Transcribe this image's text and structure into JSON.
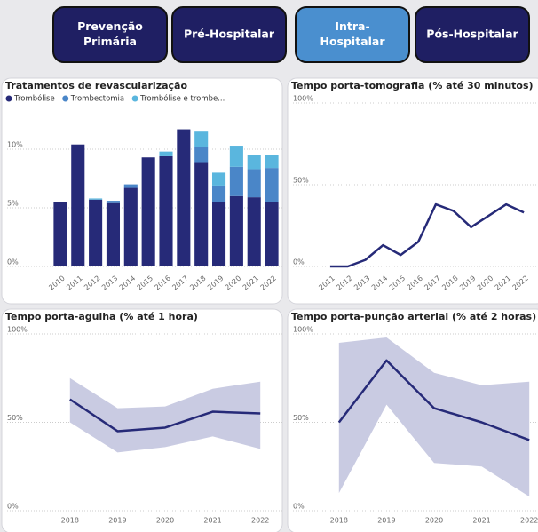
{
  "nav": [
    {
      "lines": [
        "Prevenção",
        "Primária"
      ],
      "active": false
    },
    {
      "lines": [
        "Pré-Hospitalar"
      ],
      "active": false
    },
    {
      "lines": [
        "Intra-",
        "Hospitalar"
      ],
      "active": true
    },
    {
      "lines": [
        "Pós-Hospitalar"
      ],
      "active": false
    }
  ],
  "chart_data": [
    {
      "type": "bar",
      "stacked": true,
      "title": "Tratamentos de revascularização",
      "categories": [
        "2010",
        "2011",
        "2012",
        "2013",
        "2014",
        "2015",
        "2016",
        "2017",
        "2018",
        "2019",
        "2020",
        "2021",
        "2022"
      ],
      "series": [
        {
          "name": "Trombólise",
          "color": "#262a78",
          "values": [
            5.5,
            10.4,
            5.7,
            5.4,
            6.7,
            9.3,
            9.4,
            11.7,
            8.9,
            5.5,
            6.0,
            5.9,
            5.5
          ]
        },
        {
          "name": "Trombectomia",
          "color": "#4a86c8",
          "values": [
            0,
            0,
            0,
            0.2,
            0.3,
            0,
            0,
            0,
            1.3,
            1.4,
            2.5,
            2.4,
            2.9
          ]
        },
        {
          "name": "Trombólise e trombe...",
          "color": "#5ab6de",
          "values": [
            0,
            0,
            0.1,
            0,
            0,
            0,
            0.4,
            0,
            1.3,
            1.1,
            1.8,
            1.2,
            1.1
          ]
        }
      ],
      "ylim": [
        0,
        12.5
      ],
      "yticks": [
        {
          "value": 0,
          "label": "0%"
        },
        {
          "value": 5,
          "label": "5%"
        },
        {
          "value": 10,
          "label": "10%"
        }
      ],
      "grid": true,
      "legend": "top"
    },
    {
      "type": "line",
      "title": "Tempo porta-tomografia (% até 30 minutos)",
      "categories": [
        "2011",
        "2012",
        "2013",
        "2014",
        "2015",
        "2016",
        "2017",
        "2018",
        "2019",
        "2020",
        "2021",
        "2022"
      ],
      "series": [
        {
          "name": null,
          "color": "#262a78",
          "values": [
            0,
            0,
            4,
            13,
            7,
            15,
            38,
            34,
            24,
            31,
            38,
            33
          ]
        }
      ],
      "ylim": [
        0,
        100
      ],
      "yticks": [
        {
          "value": 0,
          "label": "0%"
        },
        {
          "value": 50,
          "label": "50%"
        },
        {
          "value": 100,
          "label": "100%"
        }
      ],
      "grid": true,
      "rotate_labels": true
    },
    {
      "type": "line",
      "title": "Tempo porta-agulha (% até 1 hora)",
      "categories": [
        "2018",
        "2019",
        "2020",
        "2021",
        "2022"
      ],
      "series": [
        {
          "name": null,
          "color": "#262a78",
          "values": [
            63,
            45,
            47,
            56,
            55
          ],
          "band_upper": [
            75,
            58,
            59,
            69,
            73
          ],
          "band_lower": [
            50,
            33,
            36,
            42,
            35
          ],
          "band_color": "#c9cbe2"
        }
      ],
      "ylim": [
        0,
        100
      ],
      "yticks": [
        {
          "value": 0,
          "label": "0%"
        },
        {
          "value": 50,
          "label": "50%"
        },
        {
          "value": 100,
          "label": "100%"
        }
      ],
      "grid": true
    },
    {
      "type": "line",
      "title": "Tempo porta-punção arterial (% até 2 horas)",
      "categories": [
        "2018",
        "2019",
        "2020",
        "2021",
        "2022"
      ],
      "series": [
        {
          "name": null,
          "color": "#262a78",
          "values": [
            50,
            85,
            58,
            50,
            40
          ],
          "band_upper": [
            95,
            98,
            78,
            71,
            73
          ],
          "band_lower": [
            10,
            60,
            27,
            25,
            8
          ],
          "band_color": "#c9cbe2"
        }
      ],
      "ylim": [
        0,
        100
      ],
      "yticks": [
        {
          "value": 0,
          "label": "0%"
        },
        {
          "value": 50,
          "label": "50%"
        },
        {
          "value": 100,
          "label": "100%"
        }
      ],
      "grid": true
    }
  ]
}
